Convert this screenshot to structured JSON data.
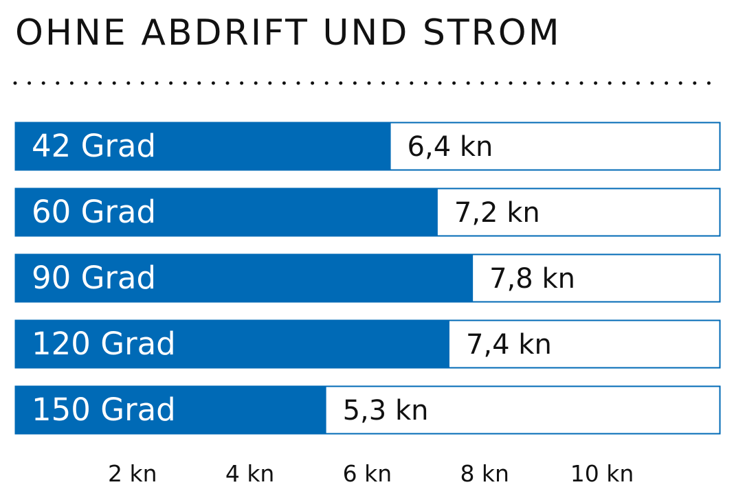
{
  "colors": {
    "bar": "#006ab6",
    "frame": "#006ab6",
    "text": "#111111"
  },
  "chart_data": {
    "type": "bar",
    "orientation": "horizontal",
    "title": "OHNE ABDRIFT UND STROM",
    "categories": [
      "42 Grad",
      "60 Grad",
      "90 Grad",
      "120 Grad",
      "150 Grad"
    ],
    "values": [
      6.4,
      7.2,
      7.8,
      7.4,
      5.3
    ],
    "value_labels": [
      "6,4 kn",
      "7,2 kn",
      "7,8 kn",
      "7,4 kn",
      "5,3 kn"
    ],
    "xticks": [
      2,
      4,
      6,
      8,
      10
    ],
    "xtick_labels": [
      "2 kn",
      "4 kn",
      "6 kn",
      "8 kn",
      "10 kn"
    ],
    "xlim": [
      0,
      12
    ],
    "grid": false,
    "legend": "none"
  }
}
